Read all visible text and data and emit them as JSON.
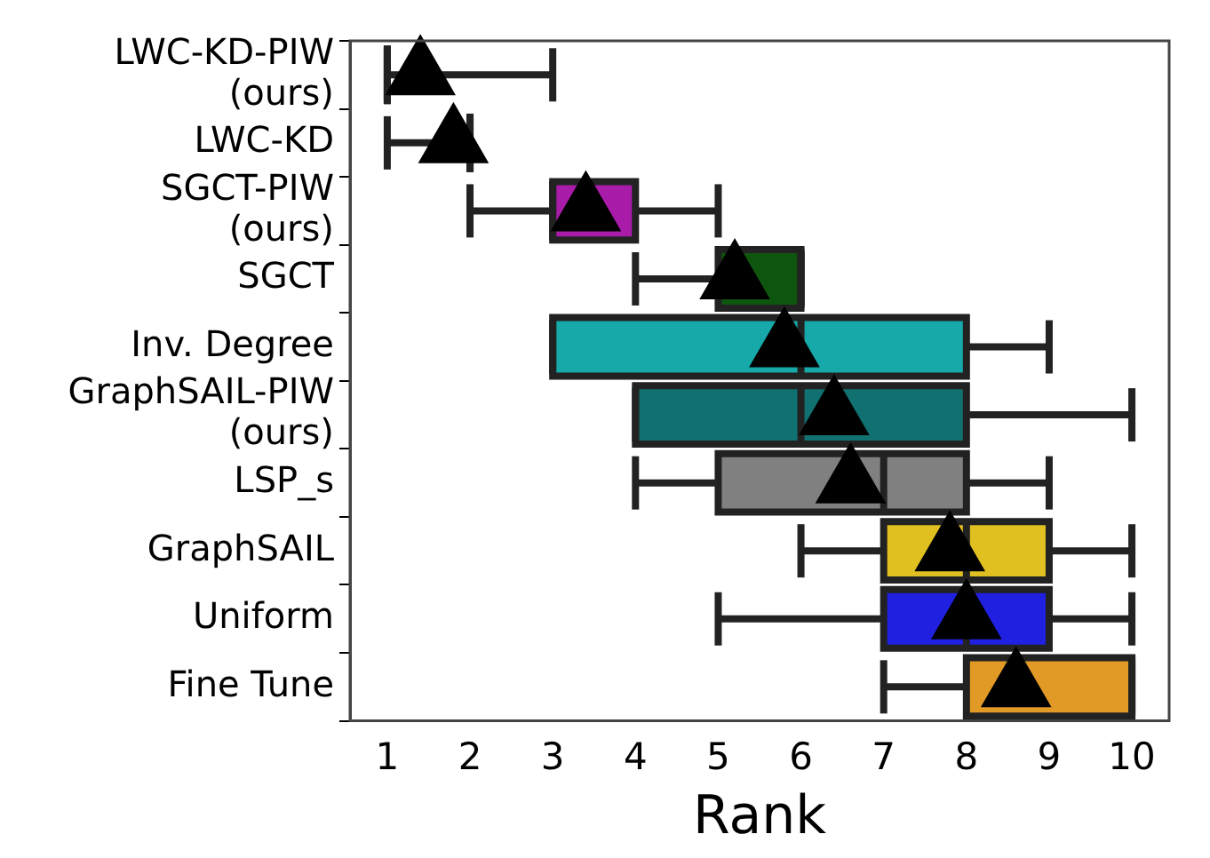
{
  "chart_data": {
    "type": "box",
    "orientation": "horizontal",
    "xlabel": "Rank",
    "categories": [
      "LWC-KD-PIW\n(ours)",
      "LWC-KD",
      "SGCT-PIW\n(ours)",
      "SGCT",
      "Inv. Degree",
      "GraphSAIL-PIW\n(ours)",
      "LSP_s",
      "GraphSAIL",
      "Uniform",
      "Fine Tune"
    ],
    "boxes": [
      {
        "low": 1,
        "q1": 1,
        "median": 1,
        "q3": 1,
        "high": 3,
        "mean": 1.4
      },
      {
        "low": 1,
        "q1": 2,
        "median": 2,
        "q3": 2,
        "high": 2,
        "mean": 1.8
      },
      {
        "low": 2,
        "q1": 3,
        "median": 3,
        "q3": 4,
        "high": 5,
        "mean": 3.4
      },
      {
        "low": 4,
        "q1": 5,
        "median": 6,
        "q3": 6,
        "high": 6,
        "mean": 5.2
      },
      {
        "low": 3,
        "q1": 3,
        "median": 6,
        "q3": 8,
        "high": 9,
        "mean": 5.8
      },
      {
        "low": 4,
        "q1": 4,
        "median": 6,
        "q3": 8,
        "high": 10,
        "mean": 6.4
      },
      {
        "low": 4,
        "q1": 5,
        "median": 7,
        "q3": 8,
        "high": 9,
        "mean": 6.6
      },
      {
        "low": 6,
        "q1": 7,
        "median": 8,
        "q3": 9,
        "high": 10,
        "mean": 7.8
      },
      {
        "low": 5,
        "q1": 7,
        "median": 8,
        "q3": 9,
        "high": 10,
        "mean": 8.0
      },
      {
        "low": 7,
        "q1": 8,
        "median": 10,
        "q3": 10,
        "high": 10,
        "mean": 8.6
      }
    ],
    "colors": [
      "#222222",
      "#222222",
      "#a91ba9",
      "#0e560e",
      "#17a9a9",
      "#117070",
      "#808080",
      "#e0c020",
      "#2020e0",
      "#e09a25"
    ],
    "marker": "triangle",
    "xlim": [
      0.55,
      10.45
    ],
    "xticks": [
      1,
      2,
      3,
      4,
      5,
      6,
      7,
      8,
      9,
      10
    ]
  }
}
